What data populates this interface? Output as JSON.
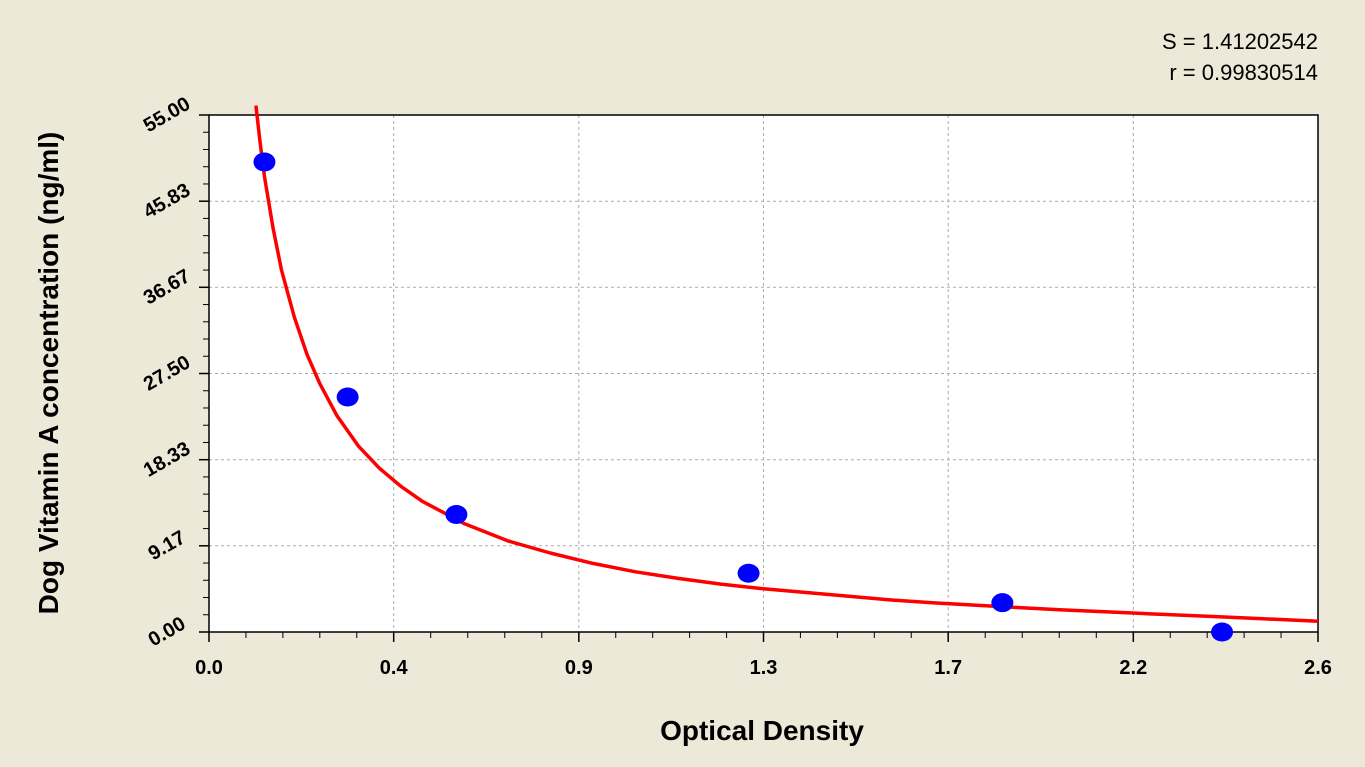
{
  "chart_data": {
    "type": "scatter",
    "xlabel": "Optical Density",
    "ylabel": "Dog Vitamin A concentration (ng/ml)",
    "xlim": [
      0.0,
      2.6
    ],
    "ylim": [
      0.0,
      55.0
    ],
    "x_ticks": [
      "0.0",
      "0.4",
      "0.9",
      "1.3",
      "1.7",
      "2.2",
      "2.6"
    ],
    "x_tick_values": [
      0.0,
      0.433,
      0.867,
      1.3,
      1.733,
      2.167,
      2.6
    ],
    "y_ticks": [
      "0.00",
      "9.17",
      "18.33",
      "27.50",
      "36.67",
      "45.83",
      "55.00"
    ],
    "y_tick_values": [
      0.0,
      9.17,
      18.33,
      27.5,
      36.67,
      45.83,
      55.0
    ],
    "grid": true,
    "series": [
      {
        "kind": "points",
        "x": [
          0.13,
          0.325,
          0.58,
          1.265,
          1.86,
          2.375
        ],
        "y": [
          50.0,
          25.0,
          12.5,
          6.25,
          3.12,
          0.0
        ],
        "color": "#0000ff"
      },
      {
        "kind": "fitted-curve",
        "color": "#ff0000",
        "x": [
          0.11,
          0.12,
          0.13,
          0.15,
          0.17,
          0.2,
          0.23,
          0.26,
          0.3,
          0.35,
          0.4,
          0.45,
          0.5,
          0.6,
          0.7,
          0.8,
          0.9,
          1.0,
          1.1,
          1.2,
          1.3,
          1.4,
          1.5,
          1.6,
          1.7,
          1.8,
          1.9,
          2.0,
          2.1,
          2.2,
          2.3,
          2.4,
          2.5,
          2.6
        ],
        "y": [
          56.0,
          52.0,
          48.5,
          43.0,
          38.5,
          33.5,
          29.5,
          26.4,
          23.0,
          19.8,
          17.4,
          15.5,
          13.9,
          11.5,
          9.7,
          8.4,
          7.3,
          6.4,
          5.7,
          5.1,
          4.6,
          4.2,
          3.8,
          3.4,
          3.1,
          2.85,
          2.6,
          2.35,
          2.15,
          1.95,
          1.75,
          1.55,
          1.35,
          1.15
        ]
      }
    ],
    "annotations": {
      "s_label": "S = 1.41202542",
      "r_label": "r = 0.99830514"
    }
  }
}
